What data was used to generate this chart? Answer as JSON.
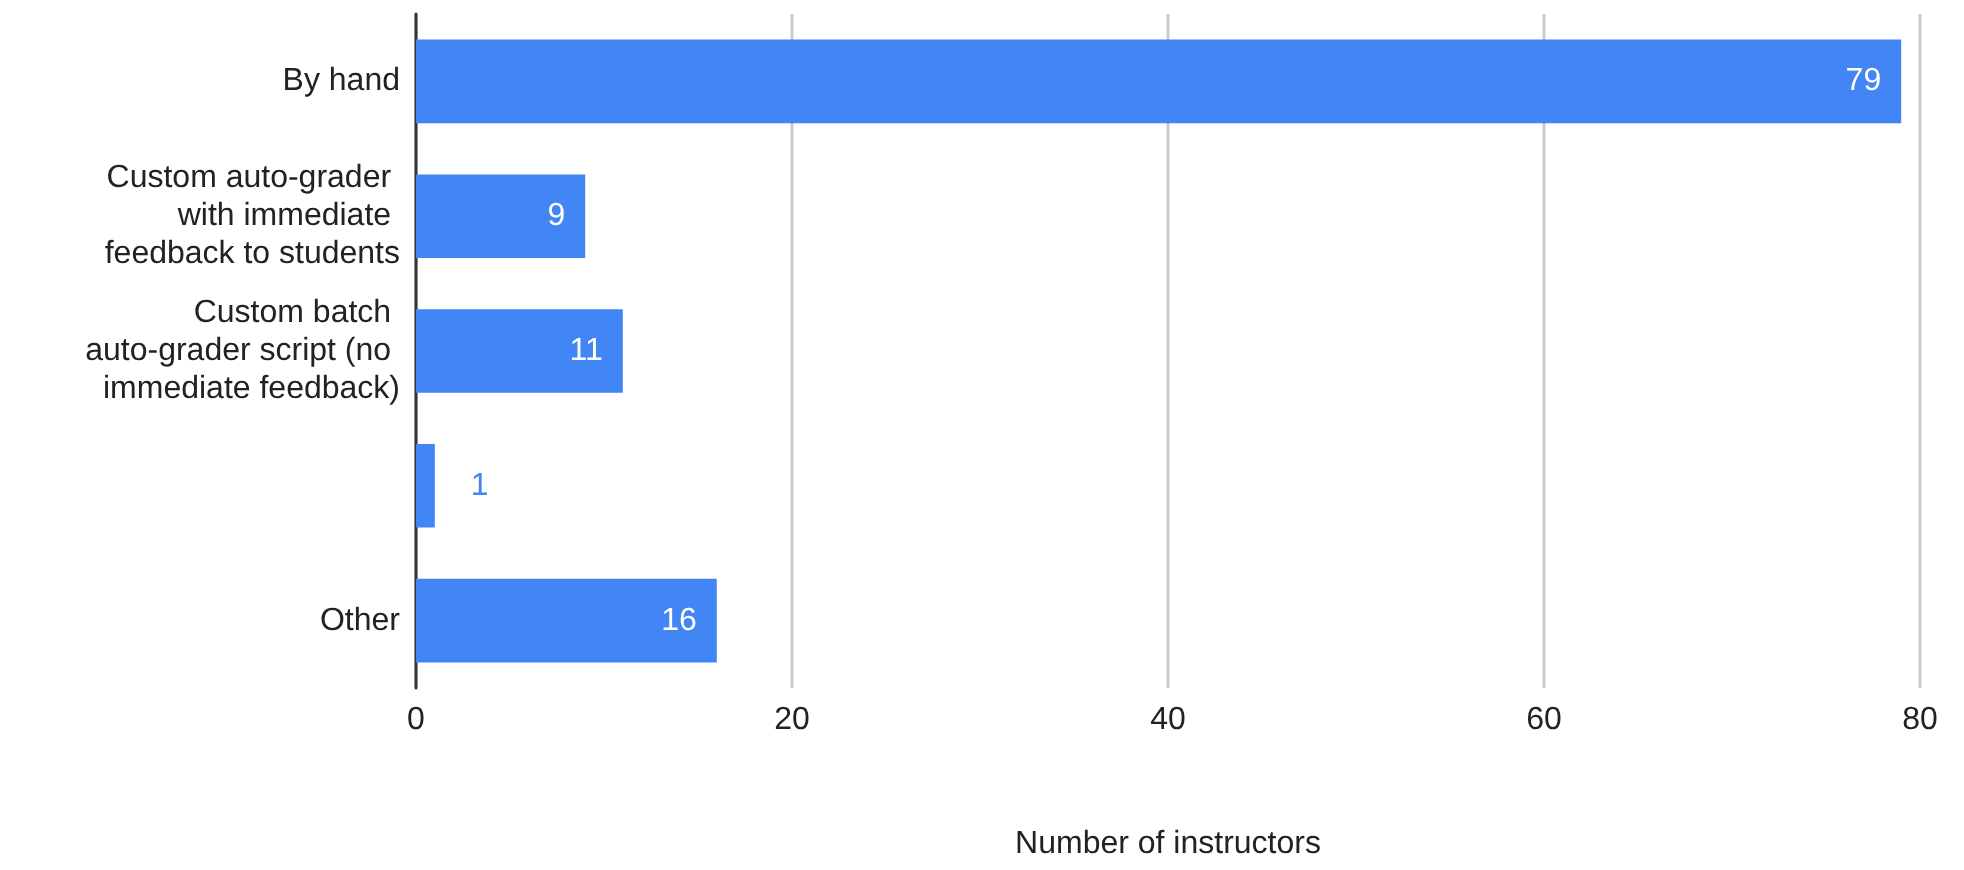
{
  "chart_data": {
    "type": "bar",
    "orientation": "horizontal",
    "xlabel": "Number of instructors",
    "categories": [
      "By hand",
      "Custom auto-grader with immediate feedback to students",
      "Custom batch auto-grader script (no immediate feedback)",
      null,
      "Other"
    ],
    "values": [
      79,
      9,
      11,
      1,
      16
    ],
    "color": "#4285f4",
    "xlim": [
      0,
      80
    ],
    "xticks": [
      0,
      20,
      40,
      60,
      80
    ],
    "grid": "x",
    "data_labels": true
  }
}
